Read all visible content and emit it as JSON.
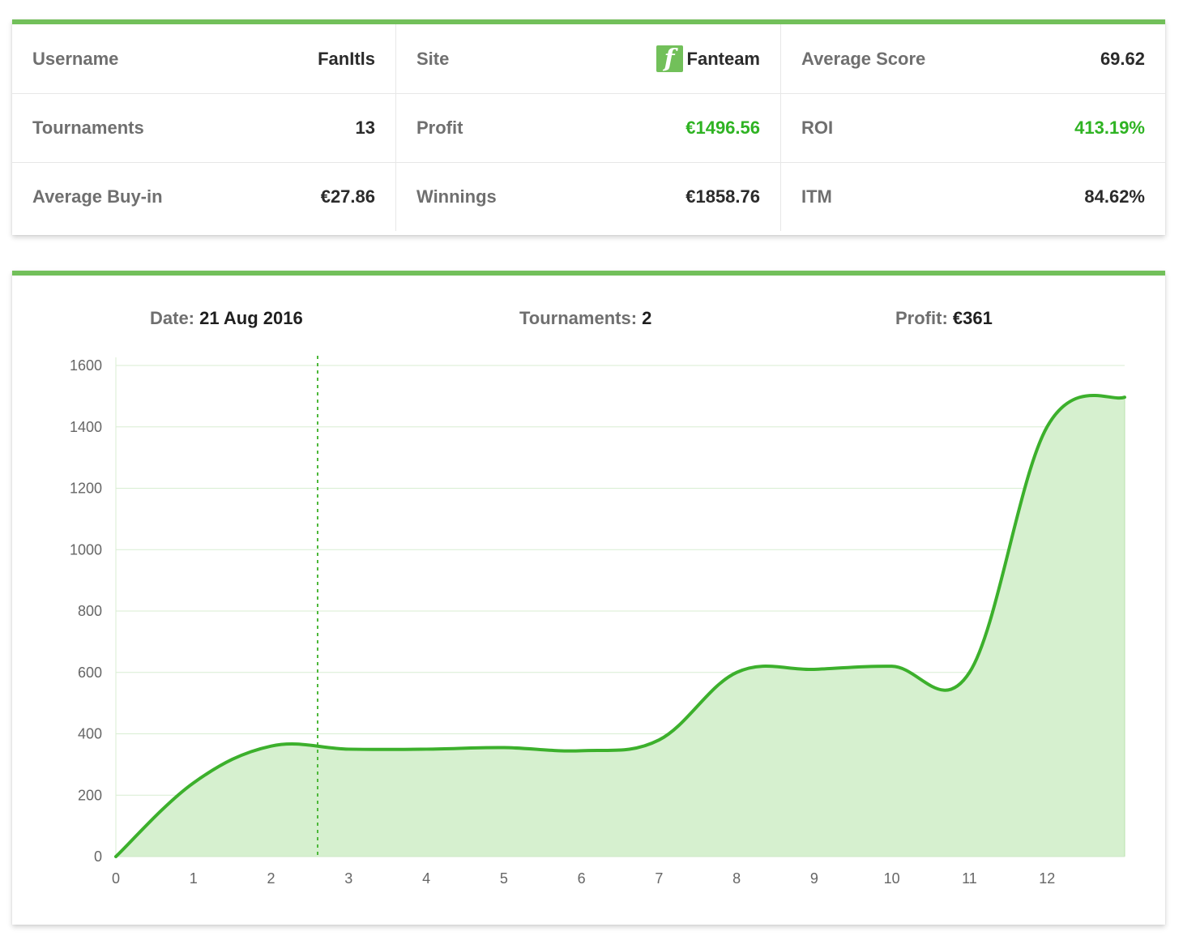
{
  "stats": {
    "username": {
      "label": "Username",
      "value": "FanItls"
    },
    "site": {
      "label": "Site",
      "value": "Fanteam",
      "icon": "fanteam-logo-icon",
      "icon_letter": "f"
    },
    "average_score": {
      "label": "Average Score",
      "value": "69.62"
    },
    "tournaments": {
      "label": "Tournaments",
      "value": "13"
    },
    "profit": {
      "label": "Profit",
      "value": "€1496.56"
    },
    "roi": {
      "label": "ROI",
      "value": "413.19%"
    },
    "average_buyin": {
      "label": "Average Buy-in",
      "value": "€27.86"
    },
    "winnings": {
      "label": "Winnings",
      "value": "€1858.76"
    },
    "itm": {
      "label": "ITM",
      "value": "84.62%"
    }
  },
  "hover_info": {
    "date_label": "Date:",
    "date_value": "21 Aug 2016",
    "tournaments_label": "Tournaments:",
    "tournaments_value": "2",
    "profit_label": "Profit:",
    "profit_value": "€361"
  },
  "colors": {
    "accent": "#72c05a",
    "positive": "#2fb323",
    "line": "#3cb02c",
    "area": "#d6f0cf"
  },
  "chart_data": {
    "type": "area",
    "x": [
      0,
      1,
      2,
      3,
      4,
      5,
      6,
      7,
      8,
      9,
      10,
      11,
      12,
      13
    ],
    "y": [
      0,
      240,
      360,
      350,
      350,
      355,
      345,
      380,
      600,
      610,
      620,
      600,
      1400,
      1496.56
    ],
    "x_ticks": [
      "0",
      "1",
      "2",
      "3",
      "4",
      "5",
      "6",
      "7",
      "8",
      "9",
      "10",
      "11",
      "12"
    ],
    "y_ticks": [
      0,
      200,
      400,
      600,
      800,
      1000,
      1200,
      1400,
      1600
    ],
    "xlim": [
      0,
      13
    ],
    "ylim": [
      0,
      1600
    ],
    "hover_x": 2.6,
    "grid": true,
    "xlabel": "",
    "ylabel": ""
  }
}
